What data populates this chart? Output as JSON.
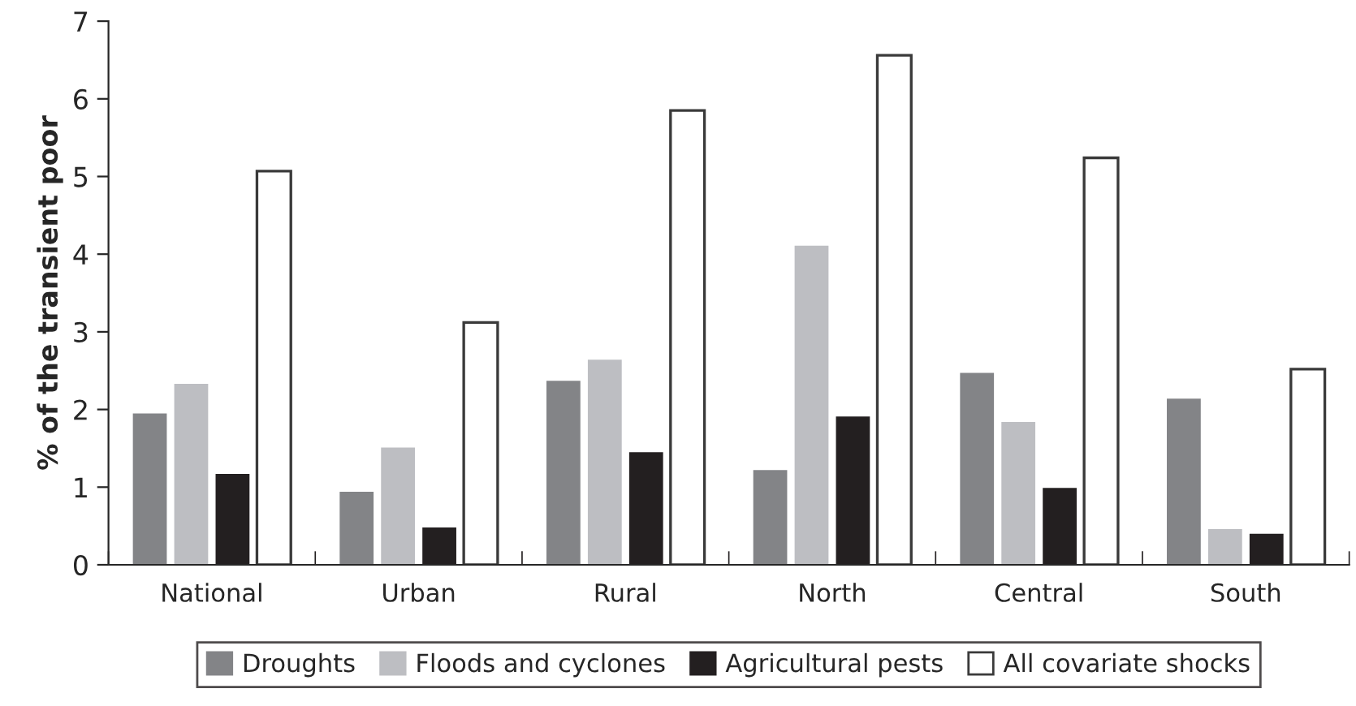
{
  "chart_data": {
    "type": "bar",
    "ylabel": "% of the transient poor",
    "categories": [
      "National",
      "Urban",
      "Rural",
      "North",
      "Central",
      "South"
    ],
    "series": [
      {
        "name": "Droughts",
        "color": "#838487",
        "values": [
          1.95,
          0.94,
          2.37,
          1.22,
          2.47,
          2.14
        ]
      },
      {
        "name": "Floods and cyclones",
        "color": "#bdbec2",
        "values": [
          2.33,
          1.51,
          2.64,
          4.11,
          1.84,
          0.46
        ]
      },
      {
        "name": "Agricultural pests",
        "color": "#231f20",
        "values": [
          1.17,
          0.48,
          1.45,
          1.91,
          0.99,
          0.4
        ]
      },
      {
        "name": "All covariate shocks",
        "color": "#ffffff",
        "values": [
          5.07,
          3.12,
          5.85,
          6.56,
          5.24,
          2.52
        ]
      }
    ],
    "ylim": [
      0,
      7
    ],
    "yticks": [
      0,
      1,
      2,
      3,
      4,
      5,
      6,
      7
    ],
    "grid": false,
    "legend": "bottom"
  }
}
